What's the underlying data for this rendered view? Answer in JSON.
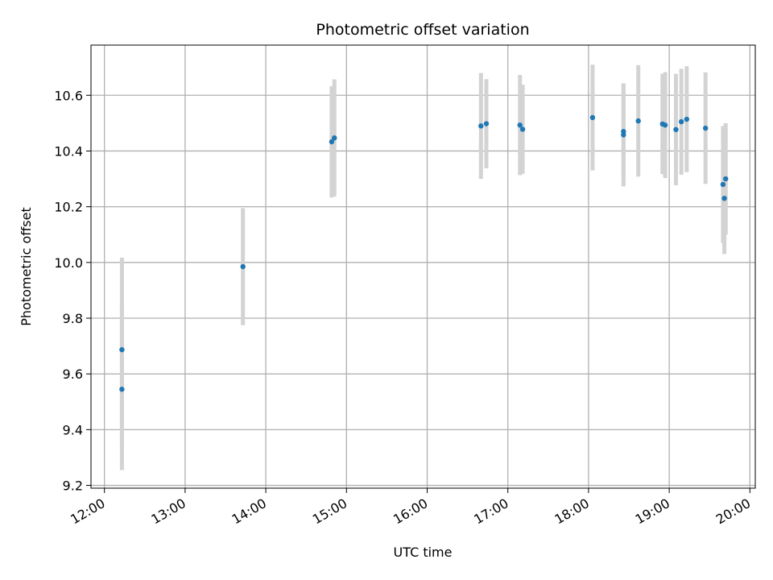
{
  "chart_data": {
    "type": "scatter",
    "title": "Photometric offset variation",
    "xlabel": "UTC time",
    "ylabel": "Photometric offset",
    "x_ticks": [
      "12:00",
      "13:00",
      "14:00",
      "15:00",
      "16:00",
      "17:00",
      "18:00",
      "19:00",
      "20:00"
    ],
    "y_ticks": [
      "9.2",
      "9.4",
      "9.6",
      "9.8",
      "10.0",
      "10.2",
      "10.4",
      "10.6"
    ],
    "xlim": [
      "11:50",
      "20:04"
    ],
    "ylim": [
      9.19,
      10.78
    ],
    "grid": true,
    "legend": "none",
    "points": [
      {
        "time": "12:13",
        "y": 9.545,
        "err": 0.29
      },
      {
        "time": "12:13",
        "y": 9.687,
        "err": 0.33
      },
      {
        "time": "13:43",
        "y": 9.985,
        "err": 0.21
      },
      {
        "time": "14:49",
        "y": 10.433,
        "err": 0.2
      },
      {
        "time": "14:51",
        "y": 10.447,
        "err": 0.21
      },
      {
        "time": "16:40",
        "y": 10.49,
        "err": 0.19
      },
      {
        "time": "16:44",
        "y": 10.498,
        "err": 0.16
      },
      {
        "time": "17:09",
        "y": 10.493,
        "err": 0.18
      },
      {
        "time": "17:11",
        "y": 10.478,
        "err": 0.16
      },
      {
        "time": "18:03",
        "y": 10.52,
        "err": 0.19
      },
      {
        "time": "18:26",
        "y": 10.458,
        "err": 0.185
      },
      {
        "time": "18:26",
        "y": 10.47,
        "err": 0.17
      },
      {
        "time": "18:37",
        "y": 10.508,
        "err": 0.2
      },
      {
        "time": "18:55",
        "y": 10.497,
        "err": 0.18
      },
      {
        "time": "18:57",
        "y": 10.493,
        "err": 0.19
      },
      {
        "time": "19:05",
        "y": 10.477,
        "err": 0.2
      },
      {
        "time": "19:09",
        "y": 10.505,
        "err": 0.19
      },
      {
        "time": "19:13",
        "y": 10.514,
        "err": 0.19
      },
      {
        "time": "19:27",
        "y": 10.482,
        "err": 0.2
      },
      {
        "time": "19:40",
        "y": 10.28,
        "err": 0.21
      },
      {
        "time": "19:41",
        "y": 10.23,
        "err": 0.2
      },
      {
        "time": "19:42",
        "y": 10.3,
        "err": 0.2
      }
    ],
    "colors": {
      "marker": "#1f77b4",
      "errorbar": "#d3d3d3",
      "grid": "#b0b0b0",
      "axes": "#000000"
    }
  }
}
